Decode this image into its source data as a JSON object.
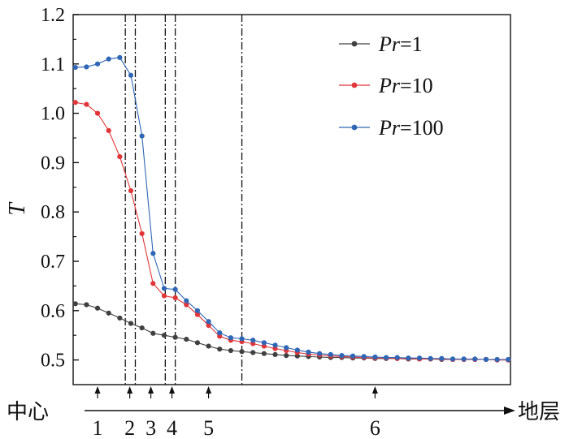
{
  "chart_data": {
    "type": "line",
    "ylabel": "T",
    "xlabel": "",
    "ylim": [
      0.45,
      1.2
    ],
    "yticks": [
      "0.5",
      "0.6",
      "0.7",
      "0.8",
      "0.9",
      "1.0",
      "1.1",
      "1.2"
    ],
    "grid": false,
    "legend_position": "top-right",
    "x_index_range": [
      -0.2,
      39.2
    ],
    "series": [
      {
        "name": "Pr=1",
        "name_italic": "Pr",
        "name_rest": "=1",
        "color": "#404040",
        "values": [
          0.614,
          0.612,
          0.605,
          0.595,
          0.585,
          0.574,
          0.565,
          0.554,
          0.55,
          0.546,
          0.542,
          0.535,
          0.528,
          0.522,
          0.519,
          0.517,
          0.515,
          0.513,
          0.511,
          0.509,
          0.508,
          0.507,
          0.506,
          0.505,
          0.505,
          0.504,
          0.504,
          0.503,
          0.503,
          0.503,
          0.502,
          0.502,
          0.502,
          0.501,
          0.501,
          0.501,
          0.501,
          0.501,
          0.5,
          0.5
        ]
      },
      {
        "name": "Pr=10",
        "name_italic": "Pr",
        "name_rest": "=10",
        "color": "#e0363a",
        "values": [
          1.022,
          1.018,
          1.0,
          0.965,
          0.912,
          0.843,
          0.756,
          0.655,
          0.63,
          0.626,
          0.612,
          0.592,
          0.57,
          0.548,
          0.54,
          0.537,
          0.533,
          0.528,
          0.523,
          0.519,
          0.515,
          0.512,
          0.51,
          0.508,
          0.507,
          0.506,
          0.505,
          0.504,
          0.504,
          0.503,
          0.503,
          0.502,
          0.502,
          0.502,
          0.501,
          0.501,
          0.501,
          0.501,
          0.5,
          0.5
        ]
      },
      {
        "name": "Pr=100",
        "name_italic": "Pr",
        "name_rest": "=100",
        "color": "#2f66b5",
        "values": [
          1.093,
          1.094,
          1.1,
          1.11,
          1.113,
          1.077,
          0.954,
          0.716,
          0.645,
          0.643,
          0.62,
          0.6,
          0.578,
          0.555,
          0.545,
          0.543,
          0.54,
          0.535,
          0.53,
          0.525,
          0.52,
          0.516,
          0.513,
          0.511,
          0.509,
          0.508,
          0.507,
          0.506,
          0.505,
          0.505,
          0.504,
          0.504,
          0.503,
          0.503,
          0.502,
          0.502,
          0.502,
          0.501,
          0.501,
          0.501
        ]
      }
    ],
    "boundaries": [
      4.5,
      5.4,
      8.1,
      9.0,
      15.0
    ],
    "zones": [
      {
        "label": "1",
        "index": 2.0
      },
      {
        "label": "2",
        "index": 4.9
      },
      {
        "label": "3",
        "index": 6.8
      },
      {
        "label": "4",
        "index": 8.7
      },
      {
        "label": "5",
        "index": 12.0
      },
      {
        "label": "6",
        "index": 27.0
      }
    ],
    "axis_start_label": "中心",
    "axis_end_label": "地层"
  }
}
